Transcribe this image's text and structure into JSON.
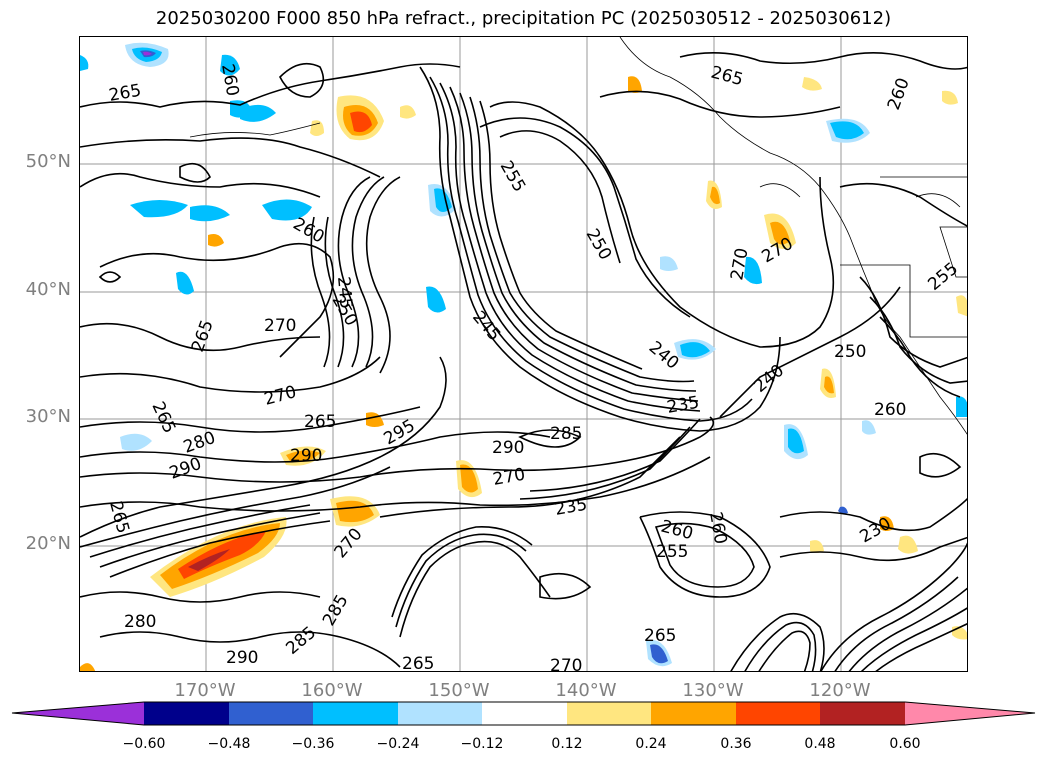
{
  "title": "2025030200 F000 850 hPa refract., precipitation PC (2025030512 - 2025030612)",
  "lat_labels": [
    "50°N",
    "40°N",
    "30°N",
    "20°N"
  ],
  "lon_labels": [
    "170°W",
    "160°W",
    "150°W",
    "140°W",
    "130°W",
    "120°W"
  ],
  "colorbar": {
    "tick_labels": [
      "−0.60",
      "−0.48",
      "−0.36",
      "−0.24",
      "−0.12",
      "0.12",
      "0.24",
      "0.36",
      "0.48",
      "0.60"
    ],
    "colors": [
      "#9b30d9",
      "#00008b",
      "#3060d0",
      "#00bfff",
      "#b0e2ff",
      "#ffffff",
      "#ffe680",
      "#ffa500",
      "#ff4500",
      "#b22222",
      "#ff88aa"
    ]
  },
  "contour_labels": [
    {
      "text": "260",
      "rot": 80
    },
    {
      "text": "265",
      "rot": -10
    },
    {
      "text": "265",
      "rot": 15
    },
    {
      "text": "260",
      "rot": -70
    },
    {
      "text": "255",
      "rot": 60
    },
    {
      "text": "250",
      "rot": 60
    },
    {
      "text": "270",
      "rot": -80
    },
    {
      "text": "270",
      "rot": -30
    },
    {
      "text": "260",
      "rot": 30
    },
    {
      "text": "245",
      "rot": 85
    },
    {
      "text": "250",
      "rot": 60
    },
    {
      "text": "265",
      "rot": -70
    },
    {
      "text": "270",
      "rot": 0
    },
    {
      "text": "270",
      "rot": -15
    },
    {
      "text": "265",
      "rot": 65
    },
    {
      "text": "245",
      "rot": 50
    },
    {
      "text": "240",
      "rot": 40
    },
    {
      "text": "255",
      "rot": -40
    },
    {
      "text": "250",
      "rot": 0
    },
    {
      "text": "260",
      "rot": 0
    },
    {
      "text": "240",
      "rot": -40
    },
    {
      "text": "235",
      "rot": -10
    },
    {
      "text": "285",
      "rot": 0
    },
    {
      "text": "290",
      "rot": 0
    },
    {
      "text": "270",
      "rot": -10
    },
    {
      "text": "295",
      "rot": -30
    },
    {
      "text": "265",
      "rot": 0
    },
    {
      "text": "280",
      "rot": -20
    },
    {
      "text": "290",
      "rot": 0
    },
    {
      "text": "290",
      "rot": -20
    },
    {
      "text": "265",
      "rot": 75
    },
    {
      "text": "260",
      "rot": 80
    },
    {
      "text": "235",
      "rot": -10
    },
    {
      "text": "260",
      "rot": 15
    },
    {
      "text": "255",
      "rot": 0
    },
    {
      "text": "230",
      "rot": -30
    },
    {
      "text": "270",
      "rot": -50
    },
    {
      "text": "285",
      "rot": -60
    },
    {
      "text": "285",
      "rot": -40
    },
    {
      "text": "290",
      "rot": 0
    },
    {
      "text": "265",
      "rot": 0
    },
    {
      "text": "265",
      "rot": 0
    },
    {
      "text": "280",
      "rot": 0
    },
    {
      "text": "270",
      "rot": 0
    }
  ]
}
